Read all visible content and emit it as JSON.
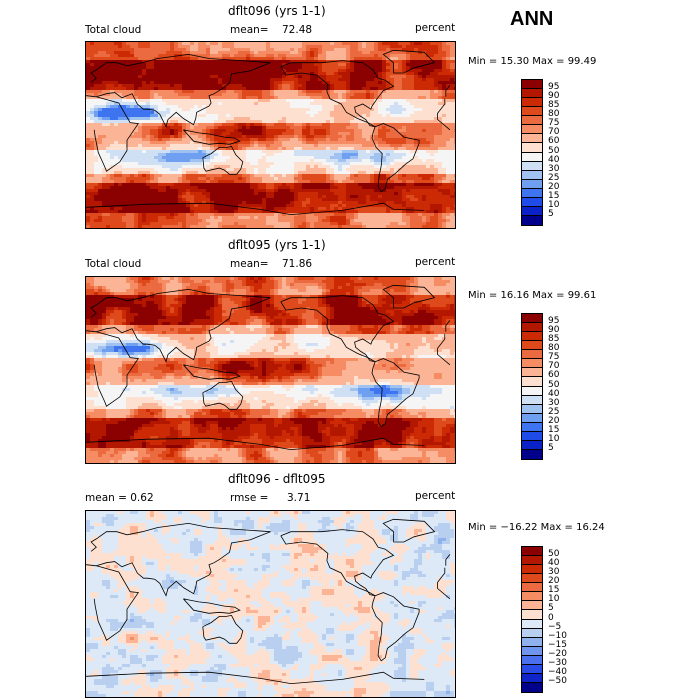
{
  "season": "ANN",
  "panels": [
    {
      "title": "dflt096 (yrs 1-1)",
      "variable": "Total cloud",
      "stats_left": "",
      "mean_label": "mean=",
      "mean_value": "72.48",
      "units": "percent",
      "min_max": "Min =  15.30 Max =  99.49",
      "kind": "abs"
    },
    {
      "title": "dflt095 (yrs 1-1)",
      "variable": "Total cloud",
      "stats_left": "",
      "mean_label": "mean=",
      "mean_value": "71.86",
      "units": "percent",
      "min_max": "Min =  16.16 Max =  99.61",
      "kind": "abs"
    },
    {
      "title": "dflt096 - dflt095",
      "variable": "mean =    0.62",
      "stats_left": "",
      "mean_label": "rmse =",
      "mean_value": "3.71",
      "units": "percent",
      "min_max": "Min = −16.22 Max =  16.24",
      "kind": "diff"
    }
  ],
  "colorbars": {
    "abs": {
      "labels": [
        "95",
        "90",
        "85",
        "80",
        "75",
        "70",
        "60",
        "50",
        "40",
        "30",
        "25",
        "20",
        "15",
        "10",
        "5"
      ],
      "colors": [
        "#8b0000",
        "#b31700",
        "#cc2a05",
        "#de4a1c",
        "#ec6a3f",
        "#f58c63",
        "#fbb495",
        "#fde0cf",
        "#f5f5f5",
        "#cfe0f5",
        "#9fc2f0",
        "#6f9ff0",
        "#3f74f0",
        "#1f4ce8",
        "#0a22c8",
        "#00008b"
      ]
    },
    "diff": {
      "labels": [
        "50",
        "40",
        "30",
        "20",
        "15",
        "10",
        "5",
        "0",
        "−5",
        "−10",
        "−15",
        "−20",
        "−30",
        "−40",
        "−50"
      ],
      "colors": [
        "#8b0000",
        "#b31700",
        "#cc2a05",
        "#de4a1c",
        "#ec6a3f",
        "#f58c63",
        "#fbb495",
        "#fde0cf",
        "#dde9f7",
        "#b9cff0",
        "#8fb2ee",
        "#6f95ee",
        "#4a70ee",
        "#2a4be6",
        "#1025c8",
        "#00008b"
      ]
    }
  },
  "chart_data": [
    {
      "type": "heatmap",
      "title": "dflt096 (yrs 1-1)",
      "variable": "Total cloud",
      "units": "percent",
      "mean": 72.48,
      "min": 15.3,
      "max": 99.49,
      "contour_levels": [
        5,
        10,
        15,
        20,
        25,
        30,
        40,
        50,
        60,
        70,
        75,
        80,
        85,
        90,
        95
      ]
    },
    {
      "type": "heatmap",
      "title": "dflt095 (yrs 1-1)",
      "variable": "Total cloud",
      "units": "percent",
      "mean": 71.86,
      "min": 16.16,
      "max": 99.61,
      "contour_levels": [
        5,
        10,
        15,
        20,
        25,
        30,
        40,
        50,
        60,
        70,
        75,
        80,
        85,
        90,
        95
      ]
    },
    {
      "type": "heatmap",
      "title": "dflt096 - dflt095",
      "units": "percent",
      "mean": 0.62,
      "rmse": 3.71,
      "min": -16.22,
      "max": 16.24,
      "contour_levels": [
        -50,
        -40,
        -30,
        -20,
        -15,
        -10,
        -5,
        0,
        5,
        10,
        15,
        20,
        30,
        40,
        50
      ]
    }
  ]
}
